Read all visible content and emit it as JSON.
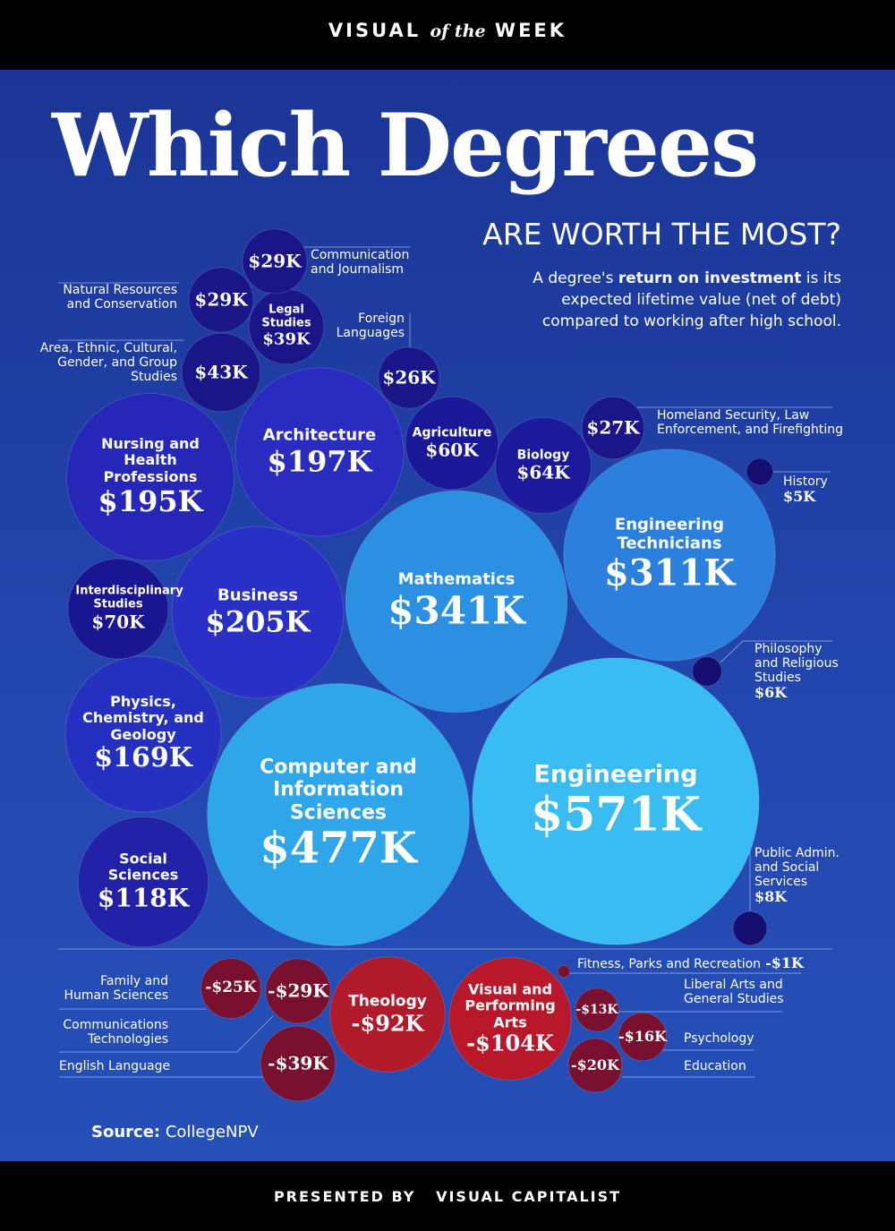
{
  "header": {
    "brand_a": "VISUAL",
    "brand_b": "of the",
    "brand_c": "WEEK"
  },
  "chart_data": {
    "type": "bubble",
    "title": "Which Degrees",
    "subtitle": "ARE WORTH THE MOST?",
    "description_before": "A degree's ",
    "description_bold": "return on investment",
    "description_after": " is its expected lifetime value (net of debt) compared to working after high school.",
    "categories": [
      "Engineering",
      "Computer and Information Sciences",
      "Mathematics",
      "Engineering Technicians",
      "Business",
      "Architecture",
      "Nursing and Health Professions",
      "Physics, Chemistry, and Geology",
      "Social Sciences",
      "Interdisciplinary Studies",
      "Biology",
      "Agriculture",
      "Area, Ethnic, Cultural, Gender, and Group Studies",
      "Legal Studies",
      "Natural Resources and Conservation",
      "Communication and Journalism",
      "Homeland Security, Law Enforcement, and Firefighting",
      "Foreign Languages",
      "Public Admin. and Social Services",
      "Philosophy and Religious Studies",
      "History",
      "Fitness, Parks and Recreation",
      "Family and Human Sciences",
      "Communications Technologies",
      "Liberal Arts and General Studies",
      "Psychology",
      "Education",
      "English Language",
      "Theology",
      "Visual and Performing Arts"
    ],
    "values": [
      571,
      477,
      341,
      311,
      205,
      197,
      195,
      169,
      118,
      70,
      64,
      60,
      43,
      39,
      29,
      29,
      27,
      26,
      8,
      6,
      5,
      -1,
      -25,
      -29,
      -13,
      -16,
      -20,
      -39,
      -92,
      -104
    ],
    "value_labels": [
      "$571K",
      "$477K",
      "$341K",
      "$311K",
      "$205K",
      "$197K",
      "$195K",
      "$169K",
      "$118K",
      "$70K",
      "$64K",
      "$60K",
      "$43K",
      "$39K",
      "$29K",
      "$29K",
      "$27K",
      "$26K",
      "$8K",
      "$6K",
      "$5K",
      "-$1K",
      "-$25K",
      "-$29K",
      "-$13K",
      "-$16K",
      "-$20K",
      "-$39K",
      "-$92K",
      "-$104K"
    ],
    "colors": [
      "#38bcf2",
      "#2fa6ea",
      "#2b90e2",
      "#2a80dc",
      "#2a30c6",
      "#2a2bc0",
      "#2626b8",
      "#2530c0",
      "#2222a8",
      "#1a1590",
      "#1c1a9c",
      "#1a1898",
      "#1a1588",
      "#1a1588",
      "#1a1588",
      "#1a1588",
      "#1a1588",
      "#1a1588",
      "#140f70",
      "#140f70",
      "#140f70",
      "#7a1030",
      "#7a1030",
      "#7a1030",
      "#7a1030",
      "#7a1030",
      "#7a1030",
      "#7a1030",
      "#b01a2a",
      "#b8182a"
    ],
    "source_label": "Source:",
    "source": "CollegeNPV"
  },
  "footer": {
    "presented_by": "PRESENTED BY",
    "brand": "VISUAL CAPITALIST"
  }
}
